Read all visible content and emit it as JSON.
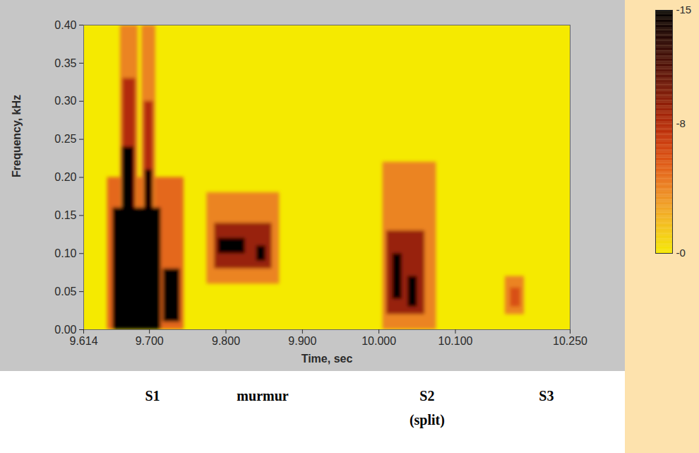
{
  "chart_data": {
    "type": "heatmap",
    "x_label": "Time, sec",
    "y_label": "Frequency, kHz",
    "xlim": [
      9.614,
      10.25
    ],
    "ylim": [
      0,
      0.4
    ],
    "xticks": [
      {
        "value": 9.614,
        "label": "9.614"
      },
      {
        "value": 9.7,
        "label": "9.700"
      },
      {
        "value": 9.8,
        "label": "9.800"
      },
      {
        "value": 9.9,
        "label": "9.900"
      },
      {
        "value": 10.0,
        "label": "10.000"
      },
      {
        "value": 10.1,
        "label": "10.100"
      },
      {
        "value": 10.25,
        "label": "10.250"
      }
    ],
    "yticks": [
      {
        "value": 0,
        "label": "0.00"
      },
      {
        "value": 0.05,
        "label": "0.05"
      },
      {
        "value": 0.1,
        "label": "0.10"
      },
      {
        "value": 0.15,
        "label": "0.15"
      },
      {
        "value": 0.2,
        "label": "0.20"
      },
      {
        "value": 0.25,
        "label": "0.25"
      },
      {
        "value": 0.3,
        "label": "0.30"
      },
      {
        "value": 0.35,
        "label": "0.35"
      },
      {
        "value": 0.4,
        "label": "0.40"
      }
    ],
    "cells": [
      {
        "x": [
          9.645,
          9.745
        ],
        "y": [
          0,
          0.2
        ],
        "value": -5
      },
      {
        "x": [
          9.662,
          9.685
        ],
        "y": [
          0.15,
          0.4
        ],
        "value": -4
      },
      {
        "x": [
          9.69,
          9.708
        ],
        "y": [
          0.15,
          0.4
        ],
        "value": -4
      },
      {
        "x": [
          9.665,
          9.682
        ],
        "y": [
          0.15,
          0.33
        ],
        "value": -8
      },
      {
        "x": [
          9.693,
          9.705
        ],
        "y": [
          0.15,
          0.3
        ],
        "value": -8
      },
      {
        "x": [
          9.652,
          9.715
        ],
        "y": [
          0,
          0.16
        ],
        "value": -15
      },
      {
        "x": [
          9.664,
          9.68
        ],
        "y": [
          0.15,
          0.24
        ],
        "value": -15
      },
      {
        "x": [
          9.694,
          9.704
        ],
        "y": [
          0.15,
          0.21
        ],
        "value": -15
      },
      {
        "x": [
          9.718,
          9.74
        ],
        "y": [
          0.01,
          0.08
        ],
        "value": -15
      },
      {
        "x": [
          9.775,
          9.87
        ],
        "y": [
          0.06,
          0.18
        ],
        "value": -4
      },
      {
        "x": [
          9.785,
          9.86
        ],
        "y": [
          0.08,
          0.14
        ],
        "value": -9
      },
      {
        "x": [
          9.79,
          9.825
        ],
        "y": [
          0.1,
          0.12
        ],
        "value": -15
      },
      {
        "x": [
          9.84,
          9.852
        ],
        "y": [
          0.09,
          0.11
        ],
        "value": -15
      },
      {
        "x": [
          10.005,
          10.075
        ],
        "y": [
          0,
          0.22
        ],
        "value": -4
      },
      {
        "x": [
          10.01,
          10.06
        ],
        "y": [
          0.02,
          0.13
        ],
        "value": -9
      },
      {
        "x": [
          10.018,
          10.03
        ],
        "y": [
          0.04,
          0.1
        ],
        "value": -15
      },
      {
        "x": [
          10.038,
          10.05
        ],
        "y": [
          0.03,
          0.07
        ],
        "value": -15
      },
      {
        "x": [
          10.165,
          10.19
        ],
        "y": [
          0.02,
          0.07
        ],
        "value": -4
      },
      {
        "x": [
          10.172,
          10.185
        ],
        "y": [
          0.03,
          0.055
        ],
        "value": -6
      }
    ],
    "colorbar": {
      "range": [
        -15,
        0
      ],
      "ticks": [
        -15,
        -8,
        {
          "value": 0,
          "label": "-0"
        }
      ]
    },
    "annotations": [
      {
        "text": "S1",
        "x": 9.704
      },
      {
        "text": "murmur",
        "x": 9.848
      },
      {
        "text": "S2\n(split)",
        "x": 10.063
      },
      {
        "text": "S3",
        "x": 10.219
      }
    ]
  }
}
